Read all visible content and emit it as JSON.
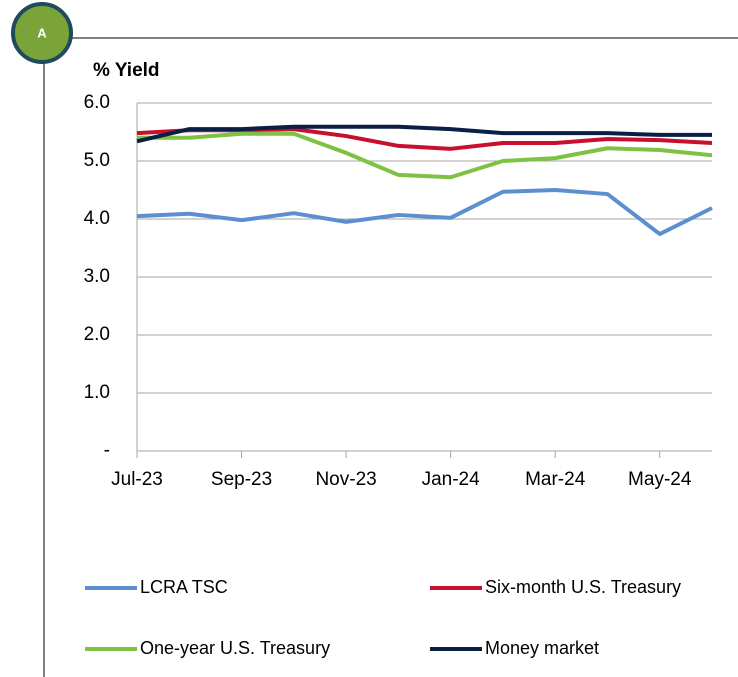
{
  "badge": "A",
  "chart_data": {
    "type": "line",
    "title": "% Yield",
    "categories": [
      "Jul-23",
      null,
      "Sep-23",
      null,
      "Nov-23",
      null,
      "Jan-24",
      null,
      "Mar-24",
      null,
      "May-24",
      null
    ],
    "series": [
      {
        "name": "LCRA TSC",
        "color": "#5b8fd0",
        "values": [
          4.05,
          4.09,
          3.98,
          4.1,
          3.95,
          4.07,
          4.02,
          4.47,
          4.5,
          4.43,
          3.74,
          4.19
        ]
      },
      {
        "name": "Six-month U.S. Treasury",
        "color": "#c8102e",
        "values": [
          5.48,
          5.53,
          5.53,
          5.55,
          5.43,
          5.26,
          5.21,
          5.31,
          5.31,
          5.38,
          5.36,
          5.31
        ]
      },
      {
        "name": "One-year U.S. Treasury",
        "color": "#7dc242",
        "values": [
          5.4,
          5.4,
          5.47,
          5.47,
          5.14,
          4.76,
          4.72,
          5.0,
          5.05,
          5.22,
          5.19,
          5.1
        ]
      },
      {
        "name": "Money market",
        "color": "#0a1f44",
        "values": [
          5.34,
          5.55,
          5.55,
          5.59,
          5.59,
          5.59,
          5.55,
          5.48,
          5.48,
          5.48,
          5.45,
          5.45
        ]
      }
    ],
    "ylim": [
      0,
      6
    ],
    "yticks": [
      {
        "value": 0,
        "label": "-"
      },
      {
        "value": 1,
        "label": "1.0"
      },
      {
        "value": 2,
        "label": "2.0"
      },
      {
        "value": 3,
        "label": "3.0"
      },
      {
        "value": 4,
        "label": "4.0"
      },
      {
        "value": 5,
        "label": "5.0"
      },
      {
        "value": 6,
        "label": "6.0"
      }
    ],
    "grid": true,
    "legend": "bottom"
  }
}
